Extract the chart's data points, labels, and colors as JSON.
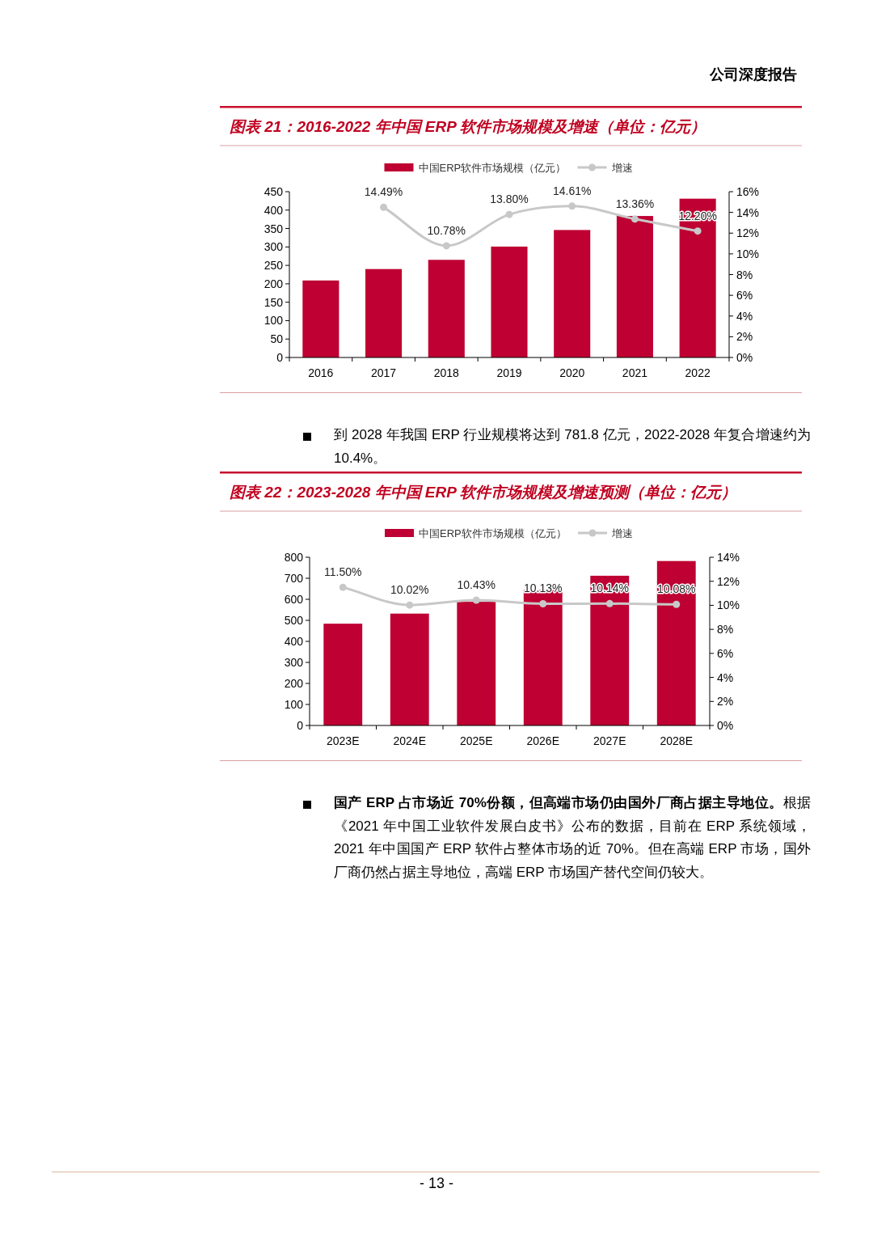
{
  "chart_data": [
    {
      "type": "bar",
      "title": "图表 21：2016-2022 年中国 ERP 软件市场规模及增速（单位：亿元）",
      "categories": [
        "2016",
        "2017",
        "2018",
        "2019",
        "2020",
        "2021",
        "2022"
      ],
      "series": [
        {
          "name": "中国ERP软件市场规模（亿元）",
          "color": "#be0032",
          "values": [
            209,
            240,
            265,
            301,
            346,
            384,
            431
          ]
        },
        {
          "name": "增速",
          "type": "line",
          "axis": "y2",
          "color": "#c8c8c8",
          "marker": "circle",
          "values": [
            null,
            14.49,
            10.78,
            13.8,
            14.61,
            13.36,
            12.2
          ],
          "value_labels": [
            null,
            "14.49%",
            "10.78%",
            "13.80%",
            "14.61%",
            "13.36%",
            "12.20%"
          ]
        }
      ],
      "ylim": [
        0,
        450
      ],
      "yticks": [
        0,
        50,
        100,
        150,
        200,
        250,
        300,
        350,
        400,
        450
      ],
      "y2lim": [
        0,
        16
      ],
      "y2ticks": [
        {
          "value": 0,
          "label": "0%"
        },
        {
          "value": 2,
          "label": "2%"
        },
        {
          "value": 4,
          "label": "4%"
        },
        {
          "value": 6,
          "label": "6%"
        },
        {
          "value": 8,
          "label": "8%"
        },
        {
          "value": 10,
          "label": "10%"
        },
        {
          "value": 12,
          "label": "12%"
        },
        {
          "value": 14,
          "label": "14%"
        },
        {
          "value": 16,
          "label": "16%"
        }
      ],
      "legend": "top",
      "grid": false,
      "annotations": [
        "公司深度报告",
        "到 2028 年我国 ERP 行业规模将达到 781.8 亿元，2022-2028 年复合增速约为 10.4%。"
      ]
    },
    {
      "type": "bar",
      "title": "图表 22：2023-2028 年中国 ERP 软件市场规模及增速预测（单位：亿元）",
      "categories": [
        "2023E",
        "2024E",
        "2025E",
        "2026E",
        "2027E",
        "2028E"
      ],
      "series": [
        {
          "name": "中国ERP软件市场规模（亿元）",
          "color": "#be0032",
          "values": [
            484,
            532,
            588,
            645,
            712,
            782
          ]
        },
        {
          "name": "增速",
          "type": "line",
          "axis": "y2",
          "color": "#c8c8c8",
          "marker": "circle",
          "values": [
            11.5,
            10.02,
            10.43,
            10.13,
            10.14,
            10.08
          ],
          "value_labels": [
            "11.50%",
            "10.02%",
            "10.43%",
            "10.13%",
            "10.14%",
            "10.08%"
          ]
        }
      ],
      "ylim": [
        0,
        800
      ],
      "yticks": [
        0,
        100,
        200,
        300,
        400,
        500,
        600,
        700,
        800
      ],
      "y2lim": [
        0,
        14
      ],
      "y2ticks": [
        {
          "value": 0,
          "label": "0%"
        },
        {
          "value": 2,
          "label": "2%"
        },
        {
          "value": 4,
          "label": "4%"
        },
        {
          "value": 6,
          "label": "6%"
        },
        {
          "value": 8,
          "label": "8%"
        },
        {
          "value": 10,
          "label": "10%"
        },
        {
          "value": 12,
          "label": "12%"
        },
        {
          "value": 14,
          "label": "14%"
        }
      ],
      "legend": "top",
      "grid": false,
      "annotations": [
        "国产 ERP 占市场近 70%份额，但高端市场仍由国外厂商占据主导地位。",
        "根据《2021 年中国工业软件发展白皮书》公布的数据，目前在 ERP 系统领域，2021 年中国国产 ERP 软件占整体市场的近 70%。但在高端 ERP 市场，国外厂商仍然占据主导地位，高端 ERP 市场国产替代空间仍较大。",
        "- 13 -"
      ]
    }
  ]
}
